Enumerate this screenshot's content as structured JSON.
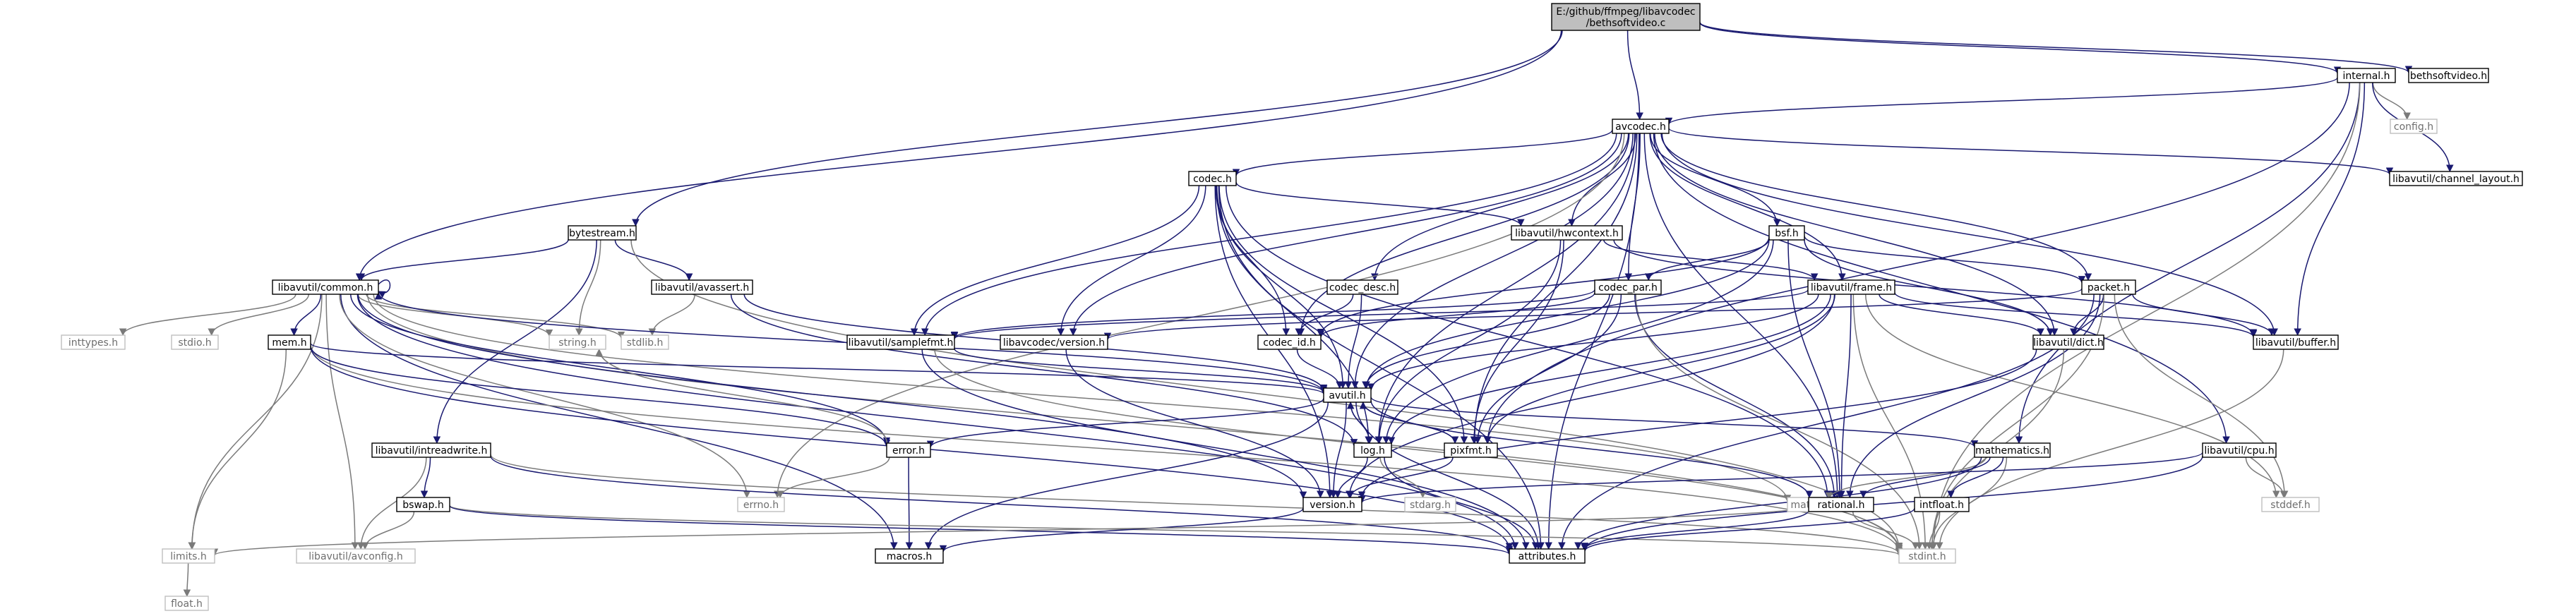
{
  "graph": {
    "nodes": [
      {
        "id": "root",
        "lines": [
          "E:/github/ffmpeg/libavcodec",
          "/bethsoftvideo.c"
        ],
        "kind": "root"
      },
      {
        "id": "internal",
        "lines": [
          "internal.h"
        ],
        "kind": "doc"
      },
      {
        "id": "bethsoftvideo_h",
        "lines": [
          "bethsoftvideo.h"
        ],
        "kind": "doc"
      },
      {
        "id": "config",
        "lines": [
          "config.h"
        ],
        "kind": "sys"
      },
      {
        "id": "avcodec",
        "lines": [
          "avcodec.h"
        ],
        "kind": "doc"
      },
      {
        "id": "channel_layout",
        "lines": [
          "libavutil/channel_layout.h"
        ],
        "kind": "doc"
      },
      {
        "id": "codec",
        "lines": [
          "codec.h"
        ],
        "kind": "doc"
      },
      {
        "id": "hwcontext",
        "lines": [
          "libavutil/hwcontext.h"
        ],
        "kind": "doc"
      },
      {
        "id": "bsf",
        "lines": [
          "bsf.h"
        ],
        "kind": "doc"
      },
      {
        "id": "bytestream",
        "lines": [
          "bytestream.h"
        ],
        "kind": "doc"
      },
      {
        "id": "common",
        "lines": [
          "libavutil/common.h"
        ],
        "kind": "doc"
      },
      {
        "id": "avassert",
        "lines": [
          "libavutil/avassert.h"
        ],
        "kind": "doc"
      },
      {
        "id": "codec_desc",
        "lines": [
          "codec_desc.h"
        ],
        "kind": "doc"
      },
      {
        "id": "codec_par",
        "lines": [
          "codec_par.h"
        ],
        "kind": "doc"
      },
      {
        "id": "frame",
        "lines": [
          "libavutil/frame.h"
        ],
        "kind": "doc"
      },
      {
        "id": "packet",
        "lines": [
          "packet.h"
        ],
        "kind": "doc"
      },
      {
        "id": "inttypes",
        "lines": [
          "inttypes.h"
        ],
        "kind": "sys"
      },
      {
        "id": "stdio",
        "lines": [
          "stdio.h"
        ],
        "kind": "sys"
      },
      {
        "id": "mem",
        "lines": [
          "mem.h"
        ],
        "kind": "doc"
      },
      {
        "id": "string",
        "lines": [
          "string.h"
        ],
        "kind": "sys"
      },
      {
        "id": "stdlib",
        "lines": [
          "stdlib.h"
        ],
        "kind": "sys"
      },
      {
        "id": "samplefmt",
        "lines": [
          "libavutil/samplefmt.h"
        ],
        "kind": "doc"
      },
      {
        "id": "version_codec",
        "lines": [
          "libavcodec/version.h"
        ],
        "kind": "doc"
      },
      {
        "id": "codec_id",
        "lines": [
          "codec_id.h"
        ],
        "kind": "doc"
      },
      {
        "id": "dict",
        "lines": [
          "libavutil/dict.h"
        ],
        "kind": "doc"
      },
      {
        "id": "buffer",
        "lines": [
          "libavutil/buffer.h"
        ],
        "kind": "doc"
      },
      {
        "id": "avutil",
        "lines": [
          "avutil.h"
        ],
        "kind": "doc"
      },
      {
        "id": "intreadwrite",
        "lines": [
          "libavutil/intreadwrite.h"
        ],
        "kind": "doc"
      },
      {
        "id": "error",
        "lines": [
          "error.h"
        ],
        "kind": "doc"
      },
      {
        "id": "log",
        "lines": [
          "log.h"
        ],
        "kind": "doc"
      },
      {
        "id": "pixfmt",
        "lines": [
          "pixfmt.h"
        ],
        "kind": "doc"
      },
      {
        "id": "mathematics",
        "lines": [
          "mathematics.h"
        ],
        "kind": "doc"
      },
      {
        "id": "cpu",
        "lines": [
          "libavutil/cpu.h"
        ],
        "kind": "doc"
      },
      {
        "id": "bswap",
        "lines": [
          "bswap.h"
        ],
        "kind": "doc"
      },
      {
        "id": "errno",
        "lines": [
          "errno.h"
        ],
        "kind": "sys"
      },
      {
        "id": "version",
        "lines": [
          "version.h"
        ],
        "kind": "doc"
      },
      {
        "id": "stdarg",
        "lines": [
          "stdarg.h"
        ],
        "kind": "sys"
      },
      {
        "id": "math",
        "lines": [
          "math.h"
        ],
        "kind": "sys"
      },
      {
        "id": "rational",
        "lines": [
          "rational.h"
        ],
        "kind": "doc"
      },
      {
        "id": "intfloat",
        "lines": [
          "intfloat.h"
        ],
        "kind": "doc"
      },
      {
        "id": "stddef",
        "lines": [
          "stddef.h"
        ],
        "kind": "sys"
      },
      {
        "id": "limits",
        "lines": [
          "limits.h"
        ],
        "kind": "sys"
      },
      {
        "id": "avconfig",
        "lines": [
          "libavutil/avconfig.h"
        ],
        "kind": "sys"
      },
      {
        "id": "macros",
        "lines": [
          "macros.h"
        ],
        "kind": "doc"
      },
      {
        "id": "attributes",
        "lines": [
          "attributes.h"
        ],
        "kind": "doc"
      },
      {
        "id": "stdint",
        "lines": [
          "stdint.h"
        ],
        "kind": "sys"
      },
      {
        "id": "float",
        "lines": [
          "float.h"
        ],
        "kind": "sys"
      }
    ],
    "edges": [
      [
        "root",
        "internal"
      ],
      [
        "root",
        "bethsoftvideo_h"
      ],
      [
        "root",
        "avcodec"
      ],
      [
        "root",
        "bytestream"
      ],
      [
        "root",
        "common"
      ],
      [
        "internal",
        "config"
      ],
      [
        "internal",
        "avcodec"
      ],
      [
        "internal",
        "channel_layout"
      ],
      [
        "internal",
        "buffer"
      ],
      [
        "internal",
        "pixfmt"
      ],
      [
        "internal",
        "mathematics"
      ],
      [
        "internal",
        "stdint"
      ],
      [
        "avcodec",
        "channel_layout"
      ],
      [
        "avcodec",
        "codec"
      ],
      [
        "avcodec",
        "hwcontext"
      ],
      [
        "avcodec",
        "bsf"
      ],
      [
        "avcodec",
        "codec_desc"
      ],
      [
        "avcodec",
        "codec_par"
      ],
      [
        "avcodec",
        "frame"
      ],
      [
        "avcodec",
        "packet"
      ],
      [
        "avcodec",
        "samplefmt"
      ],
      [
        "avcodec",
        "version_codec"
      ],
      [
        "avcodec",
        "codec_id"
      ],
      [
        "avcodec",
        "dict"
      ],
      [
        "avcodec",
        "buffer"
      ],
      [
        "avcodec",
        "avutil"
      ],
      [
        "avcodec",
        "cpu"
      ],
      [
        "avcodec",
        "errno"
      ],
      [
        "avcodec",
        "log"
      ],
      [
        "avcodec",
        "rational"
      ],
      [
        "avcodec",
        "attributes"
      ],
      [
        "avcodec",
        "pixfmt"
      ],
      [
        "bytestream",
        "common"
      ],
      [
        "bytestream",
        "avassert"
      ],
      [
        "bytestream",
        "intreadwrite"
      ],
      [
        "bytestream",
        "string"
      ],
      [
        "bytestream",
        "stdint"
      ],
      [
        "common",
        "inttypes"
      ],
      [
        "common",
        "stdio"
      ],
      [
        "common",
        "string"
      ],
      [
        "common",
        "stdlib"
      ],
      [
        "common",
        "mem"
      ],
      [
        "common",
        "limits"
      ],
      [
        "common",
        "avconfig"
      ],
      [
        "common",
        "macros"
      ],
      [
        "common",
        "attributes"
      ],
      [
        "common",
        "errno"
      ],
      [
        "common",
        "math"
      ],
      [
        "common",
        "stdint"
      ],
      [
        "common",
        "version"
      ],
      [
        "common",
        "error"
      ],
      [
        "common",
        "common"
      ],
      [
        "avassert",
        "stdlib"
      ],
      [
        "avassert",
        "avutil"
      ],
      [
        "avassert",
        "log"
      ],
      [
        "codec",
        "samplefmt"
      ],
      [
        "codec",
        "version_codec"
      ],
      [
        "codec",
        "codec_id"
      ],
      [
        "codec",
        "hwcontext"
      ],
      [
        "codec",
        "avutil"
      ],
      [
        "codec",
        "log"
      ],
      [
        "codec",
        "rational"
      ],
      [
        "codec",
        "pixfmt"
      ],
      [
        "codec",
        "attributes"
      ],
      [
        "codec",
        "version"
      ],
      [
        "hwcontext",
        "frame"
      ],
      [
        "hwcontext",
        "buffer"
      ],
      [
        "hwcontext",
        "log"
      ],
      [
        "hwcontext",
        "pixfmt"
      ],
      [
        "bsf",
        "codec_par"
      ],
      [
        "bsf",
        "packet"
      ],
      [
        "bsf",
        "dict"
      ],
      [
        "bsf",
        "log"
      ],
      [
        "bsf",
        "rational"
      ],
      [
        "bsf",
        "codec_id"
      ],
      [
        "bsf",
        "avutil"
      ],
      [
        "codec_desc",
        "codec_id"
      ],
      [
        "codec_desc",
        "avutil"
      ],
      [
        "codec_par",
        "codec_id"
      ],
      [
        "codec_par",
        "avutil"
      ],
      [
        "codec_par",
        "rational"
      ],
      [
        "codec_par",
        "pixfmt"
      ],
      [
        "codec_par",
        "stdint"
      ],
      [
        "codec_par",
        "samplefmt"
      ],
      [
        "frame",
        "dict"
      ],
      [
        "frame",
        "buffer"
      ],
      [
        "frame",
        "avutil"
      ],
      [
        "frame",
        "rational"
      ],
      [
        "frame",
        "samplefmt"
      ],
      [
        "frame",
        "stddef"
      ],
      [
        "frame",
        "stdint"
      ],
      [
        "frame",
        "pixfmt"
      ],
      [
        "frame",
        "version"
      ],
      [
        "frame",
        "log"
      ],
      [
        "packet",
        "buffer"
      ],
      [
        "packet",
        "dict"
      ],
      [
        "packet",
        "attributes"
      ],
      [
        "packet",
        "rational"
      ],
      [
        "packet",
        "stddef"
      ],
      [
        "packet",
        "stdint"
      ],
      [
        "packet",
        "version_codec"
      ],
      [
        "mem",
        "limits"
      ],
      [
        "mem",
        "stdint"
      ],
      [
        "mem",
        "attributes"
      ],
      [
        "mem",
        "error"
      ],
      [
        "mem",
        "avutil"
      ],
      [
        "samplefmt",
        "avutil"
      ],
      [
        "samplefmt",
        "attributes"
      ],
      [
        "samplefmt",
        "stdint"
      ],
      [
        "version_codec",
        "version"
      ],
      [
        "codec_id",
        "avutil"
      ],
      [
        "dict",
        "stdint"
      ],
      [
        "dict",
        "version"
      ],
      [
        "buffer",
        "stdint"
      ],
      [
        "avutil",
        "common"
      ],
      [
        "avutil",
        "error"
      ],
      [
        "avutil",
        "log"
      ],
      [
        "avutil",
        "pixfmt"
      ],
      [
        "avutil",
        "version"
      ],
      [
        "avutil",
        "rational"
      ],
      [
        "avutil",
        "mathematics"
      ],
      [
        "avutil",
        "macros"
      ],
      [
        "avutil",
        "attributes"
      ],
      [
        "intreadwrite",
        "bswap"
      ],
      [
        "intreadwrite",
        "avconfig"
      ],
      [
        "intreadwrite",
        "attributes"
      ],
      [
        "intreadwrite",
        "stdint"
      ],
      [
        "error",
        "errno"
      ],
      [
        "error",
        "string"
      ],
      [
        "error",
        "macros"
      ],
      [
        "log",
        "stdarg"
      ],
      [
        "log",
        "avutil"
      ],
      [
        "log",
        "attributes"
      ],
      [
        "log",
        "version"
      ],
      [
        "pixfmt",
        "avutil"
      ],
      [
        "pixfmt",
        "version"
      ],
      [
        "mathematics",
        "stdint"
      ],
      [
        "mathematics",
        "math"
      ],
      [
        "mathematics",
        "attributes"
      ],
      [
        "mathematics",
        "rational"
      ],
      [
        "mathematics",
        "intfloat"
      ],
      [
        "cpu",
        "stddef"
      ],
      [
        "cpu",
        "attributes"
      ],
      [
        "cpu",
        "version"
      ],
      [
        "bswap",
        "stdint"
      ],
      [
        "bswap",
        "avconfig"
      ],
      [
        "bswap",
        "attributes"
      ],
      [
        "version",
        "macros"
      ],
      [
        "rational",
        "stdint"
      ],
      [
        "rational",
        "limits"
      ],
      [
        "rational",
        "attributes"
      ],
      [
        "intfloat",
        "stdint"
      ],
      [
        "intfloat",
        "attributes"
      ],
      [
        "limits",
        "float"
      ]
    ]
  }
}
